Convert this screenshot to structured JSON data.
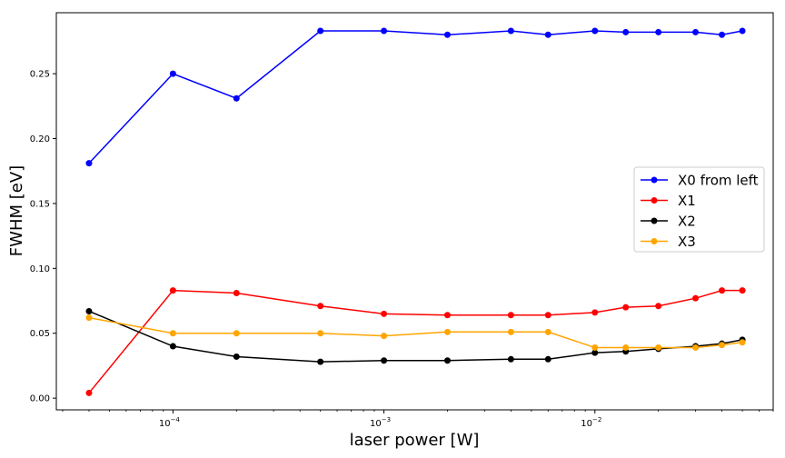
{
  "chart_data": {
    "type": "line",
    "xscale": "log",
    "xlabel": "laser power [W]",
    "ylabel": "FWHM [eV]",
    "xlim": [
      2.8e-05,
      5.8e-05,
      0.07
    ],
    "ylim": [
      -0.009,
      0.297
    ],
    "x_ticks": [
      {
        "value": 0.0001,
        "base": "10",
        "exp": "−4"
      },
      {
        "value": 0.001,
        "base": "10",
        "exp": "−3"
      },
      {
        "value": 0.01,
        "base": "10",
        "exp": "−2"
      }
    ],
    "y_ticks": [
      {
        "value": 0.0,
        "label": "0.00"
      },
      {
        "value": 0.05,
        "label": "0.05"
      },
      {
        "value": 0.1,
        "label": "0.10"
      },
      {
        "value": 0.15,
        "label": "0.15"
      },
      {
        "value": 0.2,
        "label": "0.20"
      },
      {
        "value": 0.25,
        "label": "0.25"
      }
    ],
    "x": [
      4e-05,
      0.0001,
      0.0002,
      0.0005,
      0.001,
      0.002,
      0.004,
      0.006,
      0.01,
      0.014,
      0.02,
      0.03,
      0.04,
      0.05
    ],
    "series": [
      {
        "name": "X0 from left",
        "color": "#0000ff",
        "values": [
          0.181,
          0.25,
          0.231,
          0.283,
          0.283,
          0.28,
          0.283,
          0.28,
          0.283,
          0.282,
          0.282,
          0.282,
          0.28,
          0.283
        ]
      },
      {
        "name": "X1",
        "color": "#ff0000",
        "values": [
          0.004,
          0.083,
          0.081,
          0.071,
          0.065,
          0.064,
          0.064,
          0.064,
          0.066,
          0.07,
          0.071,
          0.077,
          0.083,
          0.083
        ]
      },
      {
        "name": "X2",
        "color": "#000000",
        "values": [
          0.067,
          0.04,
          0.032,
          0.028,
          0.029,
          0.029,
          0.03,
          0.03,
          0.035,
          0.036,
          0.038,
          0.04,
          0.042,
          0.045
        ]
      },
      {
        "name": "X3",
        "color": "#ffa500",
        "values": [
          0.062,
          0.05,
          0.05,
          0.05,
          0.048,
          0.051,
          0.051,
          0.051,
          0.039,
          0.039,
          0.039,
          0.039,
          0.041,
          0.043
        ]
      }
    ],
    "legend": "center-right",
    "grid": false
  }
}
